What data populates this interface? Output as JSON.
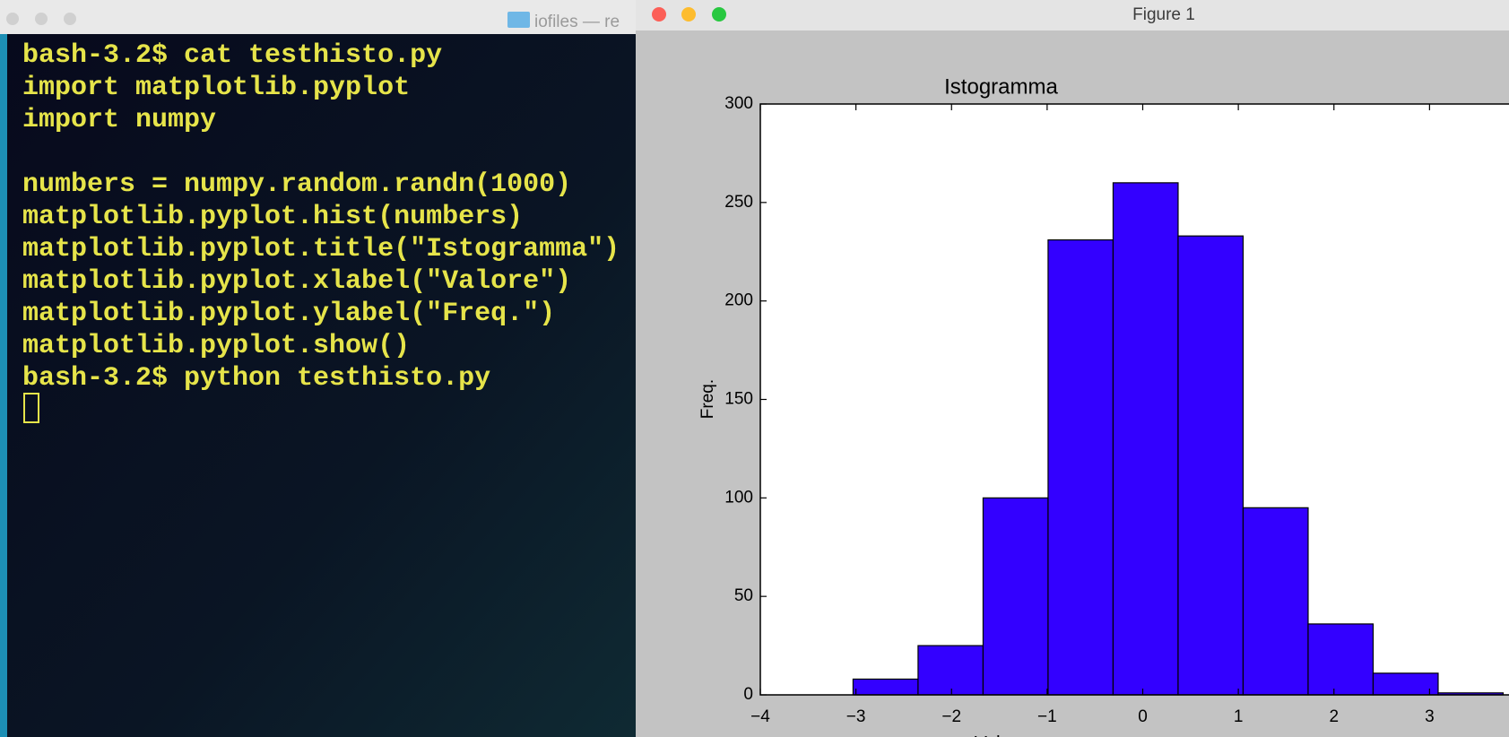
{
  "terminal": {
    "title": "iofiles — re",
    "blocks": [
      [
        "bash-3.2$ cat testhisto.py",
        "import matplotlib.pyplot",
        "import numpy"
      ],
      [
        "numbers = numpy.random.randn(1000)",
        "matplotlib.pyplot.hist(numbers)",
        "matplotlib.pyplot.title(\"Istogramma\")",
        "matplotlib.pyplot.xlabel(\"Valore\")",
        "matplotlib.pyplot.ylabel(\"Freq.\")",
        "matplotlib.pyplot.show()",
        "bash-3.2$ python testhisto.py"
      ]
    ]
  },
  "figure_window": {
    "title": "Figure 1"
  },
  "chart_data": {
    "type": "histogram",
    "title": "Istogramma",
    "x_label": "Valore",
    "y_label": "Freq.",
    "bins": [
      -3.03,
      -2.35,
      -1.67,
      -0.99,
      -0.31,
      0.37,
      1.05,
      1.73,
      2.41,
      3.09,
      3.77
    ],
    "values": [
      8,
      25,
      100,
      231,
      260,
      233,
      95,
      36,
      11,
      1
    ],
    "color": "#3300ff",
    "xlim": [
      -4,
      4
    ],
    "ylim": [
      0,
      300
    ],
    "xticks": [
      {
        "value": -4,
        "label": "−4"
      },
      {
        "value": -3,
        "label": "−3"
      },
      {
        "value": -2,
        "label": "−2"
      },
      {
        "value": -1,
        "label": "−1"
      },
      0,
      1,
      2,
      3
    ],
    "yticks": [
      0,
      50,
      100,
      150,
      200,
      250,
      300
    ]
  }
}
